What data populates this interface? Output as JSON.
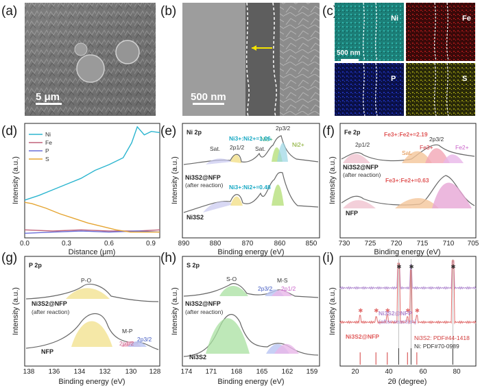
{
  "panel_labels": {
    "a": "(a)",
    "b": "(b)",
    "c": "(c)",
    "d": "(d)",
    "e": "(e)",
    "f": "(f)",
    "g": "(g)",
    "h": "(h)",
    "i": "(i)"
  },
  "images": {
    "a_scale": "5 μm",
    "b_scale": "500 nm",
    "c_scale": "500 nm",
    "c_maps": [
      "Ni",
      "Fe",
      "P",
      "S"
    ],
    "c_colors": [
      "#1f8f86",
      "#b01818",
      "#1d2fb0",
      "#b9b81a"
    ]
  },
  "chart_data": [
    {
      "panel": "d",
      "type": "line",
      "xlabel": "Distance (μm)",
      "ylabel": "Intensity (a.u.)",
      "xlim": [
        0,
        0.96
      ],
      "ylim": [
        0,
        1
      ],
      "xticks": [
        "0.0",
        "0.3",
        "0.6",
        "0.9"
      ],
      "legend": [
        "Ni",
        "Fe",
        "P",
        "S"
      ],
      "series": [
        {
          "name": "Ni",
          "color": "#2bb5cf",
          "x": [
            0,
            0.1,
            0.2,
            0.3,
            0.4,
            0.5,
            0.6,
            0.7,
            0.76,
            0.8,
            0.85,
            0.9,
            0.96
          ],
          "values": [
            0.33,
            0.37,
            0.42,
            0.47,
            0.52,
            0.59,
            0.64,
            0.7,
            0.83,
            0.97,
            0.9,
            0.93,
            0.92
          ]
        },
        {
          "name": "Fe",
          "color": "#c0627a",
          "x": [
            0,
            0.2,
            0.4,
            0.6,
            0.8,
            0.96
          ],
          "values": [
            0.07,
            0.06,
            0.07,
            0.06,
            0.06,
            0.07
          ]
        },
        {
          "name": "P",
          "color": "#6a6fd8",
          "x": [
            0,
            0.2,
            0.4,
            0.6,
            0.8,
            0.96
          ],
          "values": [
            0.04,
            0.05,
            0.06,
            0.05,
            0.06,
            0.05
          ]
        },
        {
          "name": "S",
          "color": "#e5a532",
          "x": [
            0,
            0.05,
            0.15,
            0.25,
            0.35,
            0.45,
            0.55,
            0.65,
            0.75,
            0.96
          ],
          "values": [
            0.31,
            0.3,
            0.26,
            0.21,
            0.17,
            0.13,
            0.1,
            0.07,
            0.05,
            0.05
          ]
        }
      ]
    },
    {
      "panel": "e",
      "type": "line",
      "title": "Ni 2p",
      "xlabel": "Binding energy (eV)",
      "ylabel": "Intensity (a.u.)",
      "xlim": [
        890,
        848
      ],
      "xticks": [
        "890",
        "880",
        "870",
        "860",
        "850"
      ],
      "peaks": [
        "Sat.",
        "2p1/2",
        "Ni3+",
        "2p3/2",
        "Ni2+",
        "Sat."
      ],
      "traces": [
        {
          "label": "Ni3S2@NFP",
          "sublabel": "(after reaction)",
          "ratio": "Ni3+:Ni2+=1.06"
        },
        {
          "label": "Ni3S2",
          "ratio": "Ni3+:Ni2+=0.48"
        }
      ]
    },
    {
      "panel": "f",
      "type": "line",
      "title": "Fe 2p",
      "xlabel": "Binding energy (eV)",
      "ylabel": "Intensity (a.u.)",
      "xlim": [
        731,
        705
      ],
      "xticks": [
        "730",
        "725",
        "720",
        "715",
        "710",
        "705"
      ],
      "peaks": [
        "2p1/2",
        "Sat.",
        "Fe3+",
        "2p3/2",
        "Fe2+"
      ],
      "traces": [
        {
          "label": "Ni3S2@NFP",
          "sublabel": "(after reaction)",
          "ratio": "Fe3+:Fe2+=2.19"
        },
        {
          "label": "NFP",
          "ratio": "Fe3+:Fe2+=0.63"
        }
      ]
    },
    {
      "panel": "g",
      "type": "line",
      "title": "P 2p",
      "xlabel": "Binding energy (eV)",
      "ylabel": "Intensity (a.u.)",
      "xlim": [
        138,
        128
      ],
      "xticks": [
        "138",
        "136",
        "134",
        "132",
        "130",
        "128"
      ],
      "peaks": [
        "P-O",
        "M-P",
        "2p1/2",
        "2p3/2"
      ],
      "traces": [
        {
          "label": "Ni3S2@NFP",
          "sublabel": "(after reaction)"
        },
        {
          "label": "NFP"
        }
      ]
    },
    {
      "panel": "h",
      "type": "line",
      "title": "S 2p",
      "xlabel": "Binding energy (eV)",
      "ylabel": "Intensity (a.u.)",
      "xlim": [
        174,
        158
      ],
      "xticks": [
        "174",
        "171",
        "168",
        "165",
        "162",
        "159"
      ],
      "peaks": [
        "S-O",
        "M-S",
        "2p3/2",
        "2p1/2"
      ],
      "traces": [
        {
          "label": "Ni3S2@NFP",
          "sublabel": "(after reaction)"
        },
        {
          "label": "Ni3S2"
        }
      ]
    },
    {
      "panel": "i",
      "type": "line",
      "xlabel": "2θ (degree)",
      "ylabel": "Intensity (a.u.)",
      "xlim": [
        10,
        90
      ],
      "xticks": [
        "20",
        "40",
        "60",
        "80"
      ],
      "traces": [
        {
          "label": "Ni3S2@NFP",
          "sublabel": "(after reaction)",
          "color": "#b08ad0"
        },
        {
          "label": "Ni3S2@NFP",
          "color": "#e06a6a"
        }
      ],
      "ni_peaks": [
        44.5,
        51.8,
        76.4
      ],
      "ni3s2_peaks": [
        21.8,
        31.1,
        37.8,
        49.7,
        55.2
      ],
      "references": [
        "Ni3S2: PDF#44-1418",
        "Ni: PDF#70-0989"
      ],
      "ref_colors": [
        "#d23b3b",
        "#333333"
      ]
    }
  ]
}
